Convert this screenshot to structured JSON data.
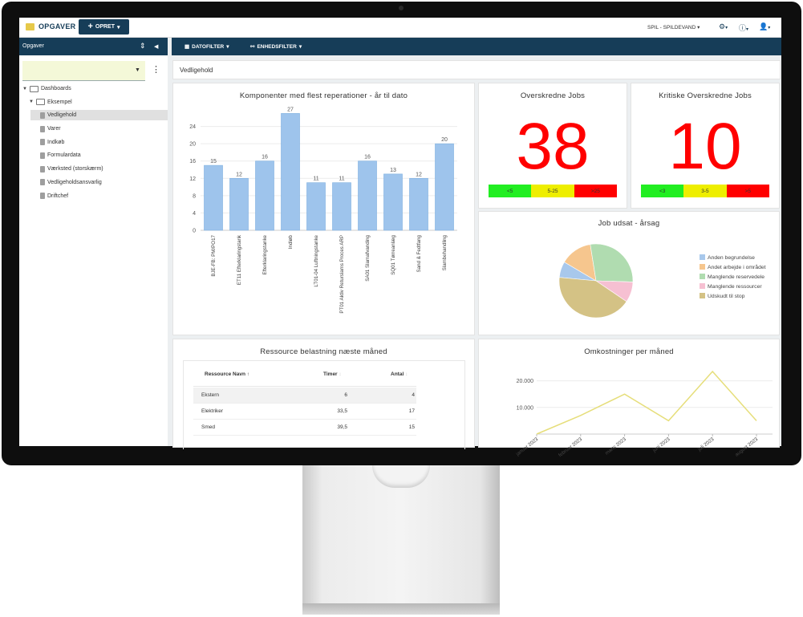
{
  "app": {
    "title": "OPGAVER",
    "create_label": "OPRET",
    "site_selector": "SPIL - SPILDEVAND"
  },
  "left_panel": {
    "title": "Opgaver"
  },
  "tree": [
    {
      "label": "Dashboards",
      "level": 0
    },
    {
      "label": "Eksempel",
      "level": 1
    },
    {
      "label": "Vedligehold",
      "level": 2,
      "selected": true
    },
    {
      "label": "Varer",
      "level": 2
    },
    {
      "label": "Indkøb",
      "level": 2
    },
    {
      "label": "Formulardata",
      "level": 2
    },
    {
      "label": "Værksted (storskærm)",
      "level": 2
    },
    {
      "label": "Vedligeholdsansvarlig",
      "level": 2
    },
    {
      "label": "Driftchef",
      "level": 2
    }
  ],
  "filters": {
    "date": "DATOFILTER",
    "unit": "ENHEDSFILTER"
  },
  "breadcrumb": "Vedligehold",
  "overdue": {
    "title": "Overskredne Jobs",
    "value": "38",
    "thresholds": [
      {
        "label": "<5",
        "color": "#22ee22"
      },
      {
        "label": "5-25",
        "color": "#eeee00"
      },
      {
        "label": ">25",
        "color": "#ff0000"
      }
    ]
  },
  "critical": {
    "title": "Kritiske Overskredne Jobs",
    "value": "10",
    "thresholds": [
      {
        "label": "<3",
        "color": "#22ee22"
      },
      {
        "label": "3-5",
        "color": "#eeee00"
      },
      {
        "label": ">5",
        "color": "#ff0000"
      }
    ]
  },
  "resource": {
    "title": "Ressource belastning næste måned",
    "columns": [
      "Ressource Navn",
      "Timer",
      "Antal"
    ],
    "rows": [
      {
        "name": "Ekstern",
        "hours": "6",
        "count": "4"
      },
      {
        "name": "Elektriker",
        "hours": "33,5",
        "count": "17"
      },
      {
        "name": "Smed",
        "hours": "39,5",
        "count": "15"
      }
    ]
  },
  "chart_data": [
    {
      "type": "bar",
      "title": "Komponenter med flest reperationer - år til dato",
      "categories": [
        "BJE-FB: PM/PO17",
        "ET11 Efterklaringstank",
        "Efterklaringstanke",
        "Indløb",
        "LT01-04 Luftningstanke",
        "PT01 Aktiv Returslams Proces ARP",
        "SA01 Slamafvanding",
        "SQ01 Tørreanlæg",
        "Sand & Fedtfang",
        "Slambehandling"
      ],
      "values": [
        15,
        12,
        16,
        27,
        11,
        11,
        16,
        13,
        12,
        20
      ],
      "ylim": [
        0,
        28
      ],
      "yticks": [
        0,
        4,
        8,
        12,
        16,
        20,
        24
      ],
      "color": "#9ec4ec",
      "grid": true
    },
    {
      "type": "pie",
      "title": "Job udsat - årsag",
      "labels": [
        "Anden begrundelse",
        "Andet arbejde i området",
        "Manglende reservedele",
        "Manglende ressourcer",
        "Udskudt til stop"
      ],
      "values": [
        7,
        14,
        28,
        9,
        42
      ],
      "colors": [
        "#a8c8ec",
        "#f6c68e",
        "#b0dcb0",
        "#f6c0d2",
        "#d4c285"
      ],
      "legend": "right"
    },
    {
      "type": "line",
      "title": "Omkostninger per måned",
      "x": [
        "januar 2023",
        "februar 2023",
        "marts 2023",
        "juni 2023",
        "juli 2023",
        "august 2023"
      ],
      "values": [
        0,
        7000,
        15000,
        5000,
        23500,
        5000
      ],
      "yticks": [
        10000,
        20000
      ],
      "ytick_labels": [
        "10.000",
        "20.000"
      ],
      "ylim": [
        0,
        25000
      ],
      "color": "#e6de7a",
      "grid": true
    }
  ]
}
